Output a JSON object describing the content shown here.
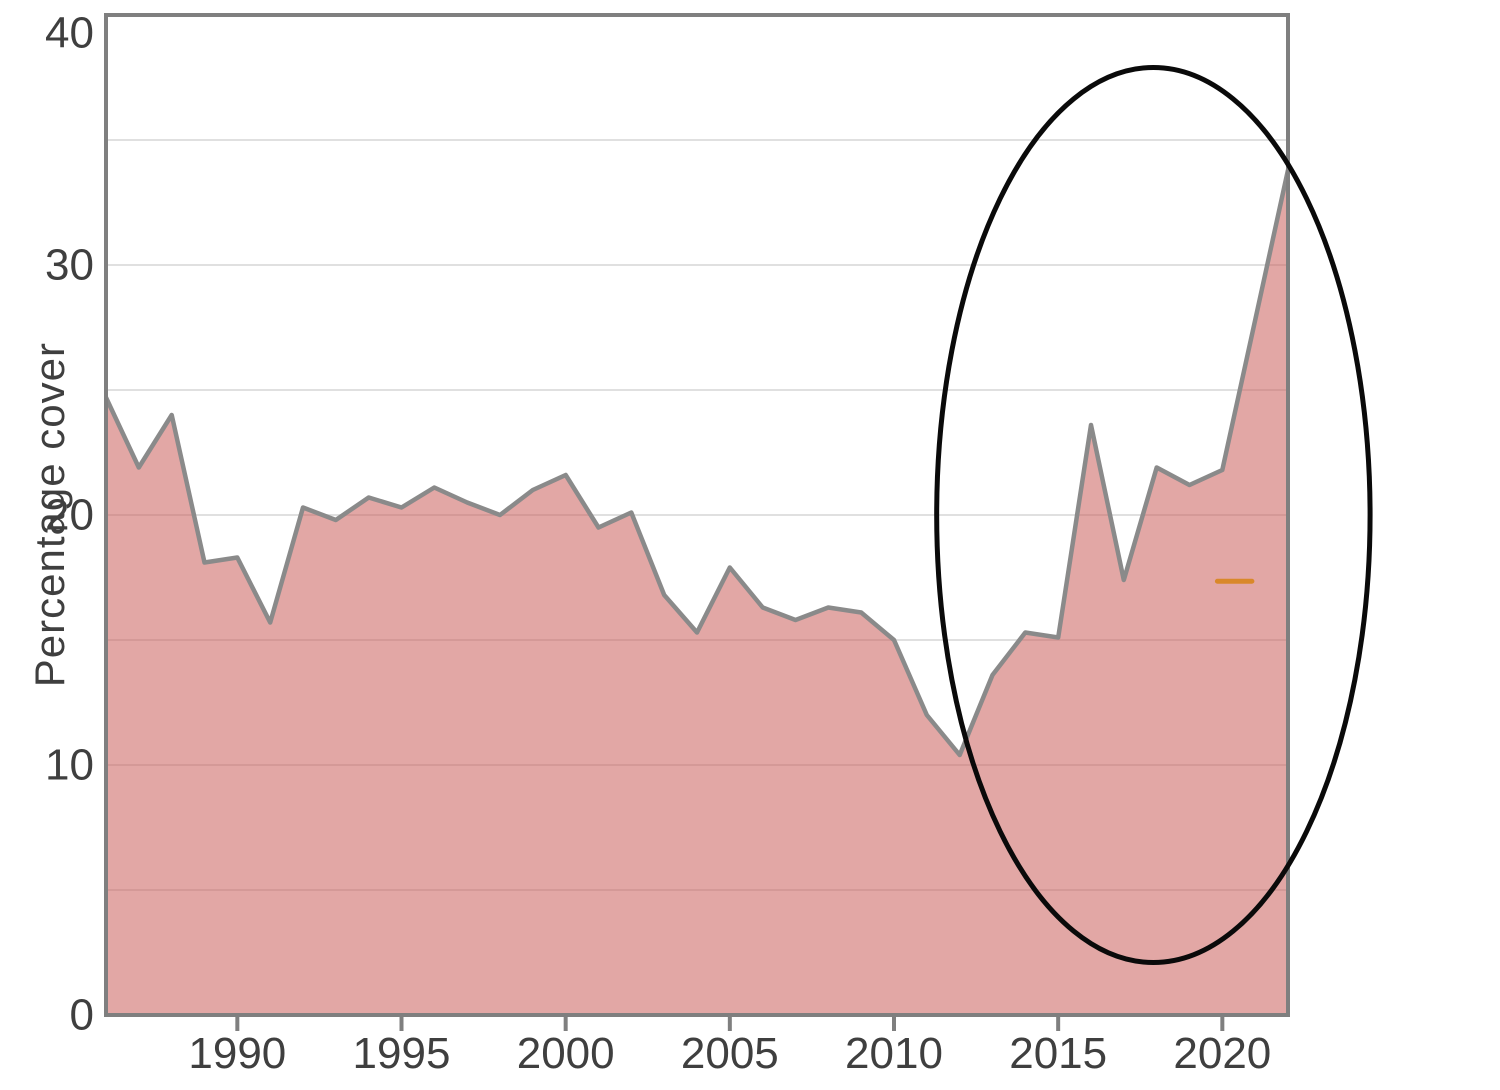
{
  "chart_data": {
    "type": "area",
    "title": "",
    "xlabel": "",
    "ylabel": "Percentage cover",
    "series_name": "Percentage cover",
    "x": [
      1986,
      1987,
      1988,
      1989,
      1990,
      1991,
      1992,
      1993,
      1994,
      1995,
      1996,
      1997,
      1998,
      1999,
      2000,
      2001,
      2002,
      2003,
      2004,
      2005,
      2006,
      2007,
      2008,
      2009,
      2010,
      2011,
      2012,
      2013,
      2014,
      2015,
      2016,
      2017,
      2018,
      2019,
      2020,
      2021,
      2022
    ],
    "values": [
      24.7,
      21.9,
      24.0,
      18.1,
      18.3,
      15.7,
      20.3,
      19.8,
      20.7,
      20.3,
      21.1,
      20.5,
      20.0,
      21.0,
      21.6,
      19.5,
      20.1,
      16.8,
      15.3,
      17.9,
      16.3,
      15.8,
      16.3,
      16.1,
      15.0,
      12.0,
      10.4,
      13.6,
      15.3,
      15.1,
      23.6,
      17.4,
      21.9,
      21.2,
      21.8,
      27.8,
      33.8
    ],
    "xlim": [
      1986,
      2022
    ],
    "ylim": [
      0,
      40
    ],
    "x_ticks": [
      1990,
      1995,
      2000,
      2005,
      2010,
      2015,
      2020
    ],
    "y_ticks": [
      0,
      10,
      20,
      30,
      40
    ],
    "gridline_step": 5,
    "grid": "horizontal-only",
    "legend_position": "none",
    "annotations": [
      {
        "kind": "ellipse",
        "purpose": "highlight-recent-recovery",
        "x_center_year": 2017.9,
        "y_center_value": 20.0,
        "x_radius_years": 6.6,
        "y_radius_values": 17.9
      },
      {
        "kind": "dash-marker",
        "x_start_year": 2019.85,
        "x_end_year": 2020.9,
        "value": 17.35
      }
    ]
  },
  "colors": {
    "background": "#ffffff",
    "area_fill_base": "#cb5e5b",
    "area_fill_opacity": 0.55,
    "line": "#8a8a8a",
    "grid": "#e0e0e0",
    "axis_border": "#7f7f7f",
    "tick_label": "#3f3f3f",
    "ellipse": "#0a0a0a",
    "dash_marker": "#d9882a"
  }
}
